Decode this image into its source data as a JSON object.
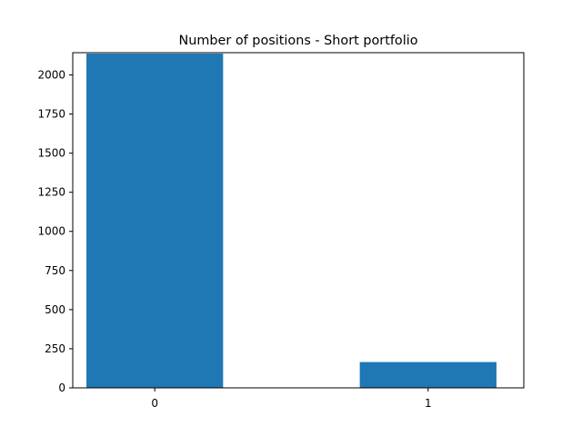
{
  "chart_data": {
    "type": "bar",
    "title": "Number of positions - Short portfolio",
    "xlabel": "",
    "ylabel": "",
    "categories": [
      "0",
      "1"
    ],
    "values": [
      2136,
      165
    ],
    "ylim": [
      0,
      2142
    ],
    "yticks": [
      0,
      250,
      500,
      750,
      1000,
      1250,
      1500,
      1750,
      2000
    ],
    "bar_color": "#1f77b4",
    "grid": false,
    "legend": "none"
  }
}
